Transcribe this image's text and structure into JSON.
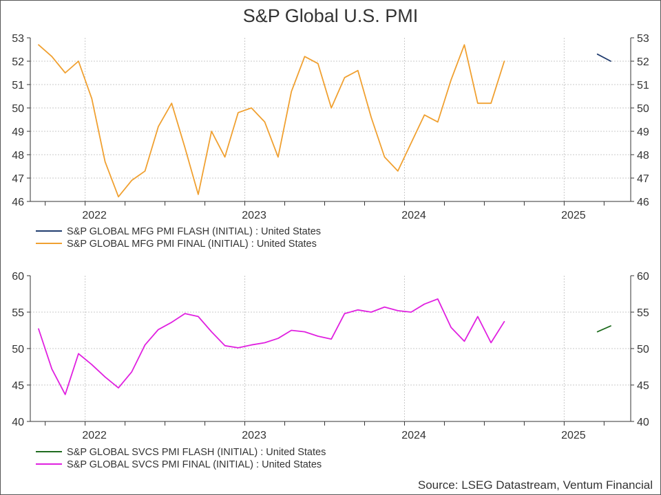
{
  "title": "S&P Global U.S. PMI",
  "source": "Source: LSEG Datastream, Ventum Financial",
  "chart_data": [
    {
      "type": "line",
      "name": "manufacturing",
      "ylim": [
        46,
        53
      ],
      "yticks": [
        46,
        47,
        48,
        49,
        50,
        51,
        52,
        53
      ],
      "year_labels": [
        "2022",
        "2023",
        "2024",
        "2025"
      ],
      "x_start": "2021-09",
      "x_end": "2025-05",
      "series": [
        {
          "name": "S&P GLOBAL MFG PMI FLASH (INITIAL) : United States",
          "color": "#1f3b6e",
          "points": [
            [
              "2025-03",
              52.3
            ],
            [
              "2025-04",
              52.0
            ]
          ]
        },
        {
          "name": "S&P GLOBAL MFG PMI FINAL (INITIAL) : United States",
          "color": "#f0a030",
          "points": [
            [
              "2021-09",
              52.7
            ],
            [
              "2021-10",
              52.2
            ],
            [
              "2021-11",
              51.5
            ],
            [
              "2021-12",
              52.0
            ],
            [
              "2022-01",
              50.4
            ],
            [
              "2022-02",
              47.7
            ],
            [
              "2022-03",
              46.2
            ],
            [
              "2022-04",
              46.9
            ],
            [
              "2022-05",
              47.3
            ],
            [
              "2022-06",
              49.2
            ],
            [
              "2022-07",
              50.2
            ],
            [
              "2022-08",
              48.3
            ],
            [
              "2022-09",
              46.3
            ],
            [
              "2022-10",
              49.0
            ],
            [
              "2022-11",
              47.9
            ],
            [
              "2022-12",
              49.8
            ],
            [
              "2023-01",
              50.0
            ],
            [
              "2023-02",
              49.4
            ],
            [
              "2023-03",
              47.9
            ],
            [
              "2023-04",
              50.7
            ],
            [
              "2023-05",
              52.2
            ],
            [
              "2023-06",
              51.9
            ],
            [
              "2023-07",
              50.0
            ],
            [
              "2023-08",
              51.3
            ],
            [
              "2023-09",
              51.6
            ],
            [
              "2023-10",
              49.6
            ],
            [
              "2023-11",
              47.9
            ],
            [
              "2023-12",
              47.3
            ],
            [
              "2024-01",
              48.5
            ],
            [
              "2024-02",
              49.7
            ],
            [
              "2024-03",
              49.4
            ],
            [
              "2024-04",
              51.2
            ],
            [
              "2024-05",
              52.7
            ],
            [
              "2024-06",
              50.2
            ],
            [
              "2024-07",
              50.2
            ],
            [
              "2024-08",
              52.0
            ]
          ]
        }
      ]
    },
    {
      "type": "line",
      "name": "services",
      "ylim": [
        40,
        60
      ],
      "yticks": [
        40,
        45,
        50,
        55,
        60
      ],
      "year_labels": [
        "2022",
        "2023",
        "2024",
        "2025"
      ],
      "x_start": "2021-09",
      "x_end": "2025-05",
      "series": [
        {
          "name": "S&P GLOBAL SVCS PMI FLASH (INITIAL) : United States",
          "color": "#1e6b1e",
          "points": [
            [
              "2025-03",
              52.3
            ],
            [
              "2025-04",
              53.1
            ]
          ]
        },
        {
          "name": "S&P GLOBAL SVCS PMI FINAL (INITIAL) : United States",
          "color": "#e020e0",
          "points": [
            [
              "2021-09",
              52.7
            ],
            [
              "2021-10",
              47.2
            ],
            [
              "2021-11",
              43.7
            ],
            [
              "2021-12",
              49.3
            ],
            [
              "2022-01",
              47.8
            ],
            [
              "2022-02",
              46.1
            ],
            [
              "2022-03",
              44.6
            ],
            [
              "2022-04",
              46.8
            ],
            [
              "2022-05",
              50.5
            ],
            [
              "2022-06",
              52.6
            ],
            [
              "2022-07",
              53.6
            ],
            [
              "2022-08",
              54.8
            ],
            [
              "2022-09",
              54.4
            ],
            [
              "2022-10",
              52.3
            ],
            [
              "2022-11",
              50.4
            ],
            [
              "2022-12",
              50.1
            ],
            [
              "2023-01",
              50.5
            ],
            [
              "2023-02",
              50.8
            ],
            [
              "2023-03",
              51.4
            ],
            [
              "2023-04",
              52.5
            ],
            [
              "2023-05",
              52.3
            ],
            [
              "2023-06",
              51.7
            ],
            [
              "2023-07",
              51.3
            ],
            [
              "2023-08",
              54.8
            ],
            [
              "2023-09",
              55.3
            ],
            [
              "2023-10",
              55.0
            ],
            [
              "2023-11",
              55.7
            ],
            [
              "2023-12",
              55.2
            ],
            [
              "2024-01",
              55.0
            ],
            [
              "2024-02",
              56.1
            ],
            [
              "2024-03",
              56.8
            ],
            [
              "2024-04",
              52.9
            ],
            [
              "2024-05",
              51.0
            ],
            [
              "2024-06",
              54.4
            ],
            [
              "2024-07",
              50.8
            ],
            [
              "2024-08",
              53.7
            ]
          ]
        }
      ]
    }
  ]
}
